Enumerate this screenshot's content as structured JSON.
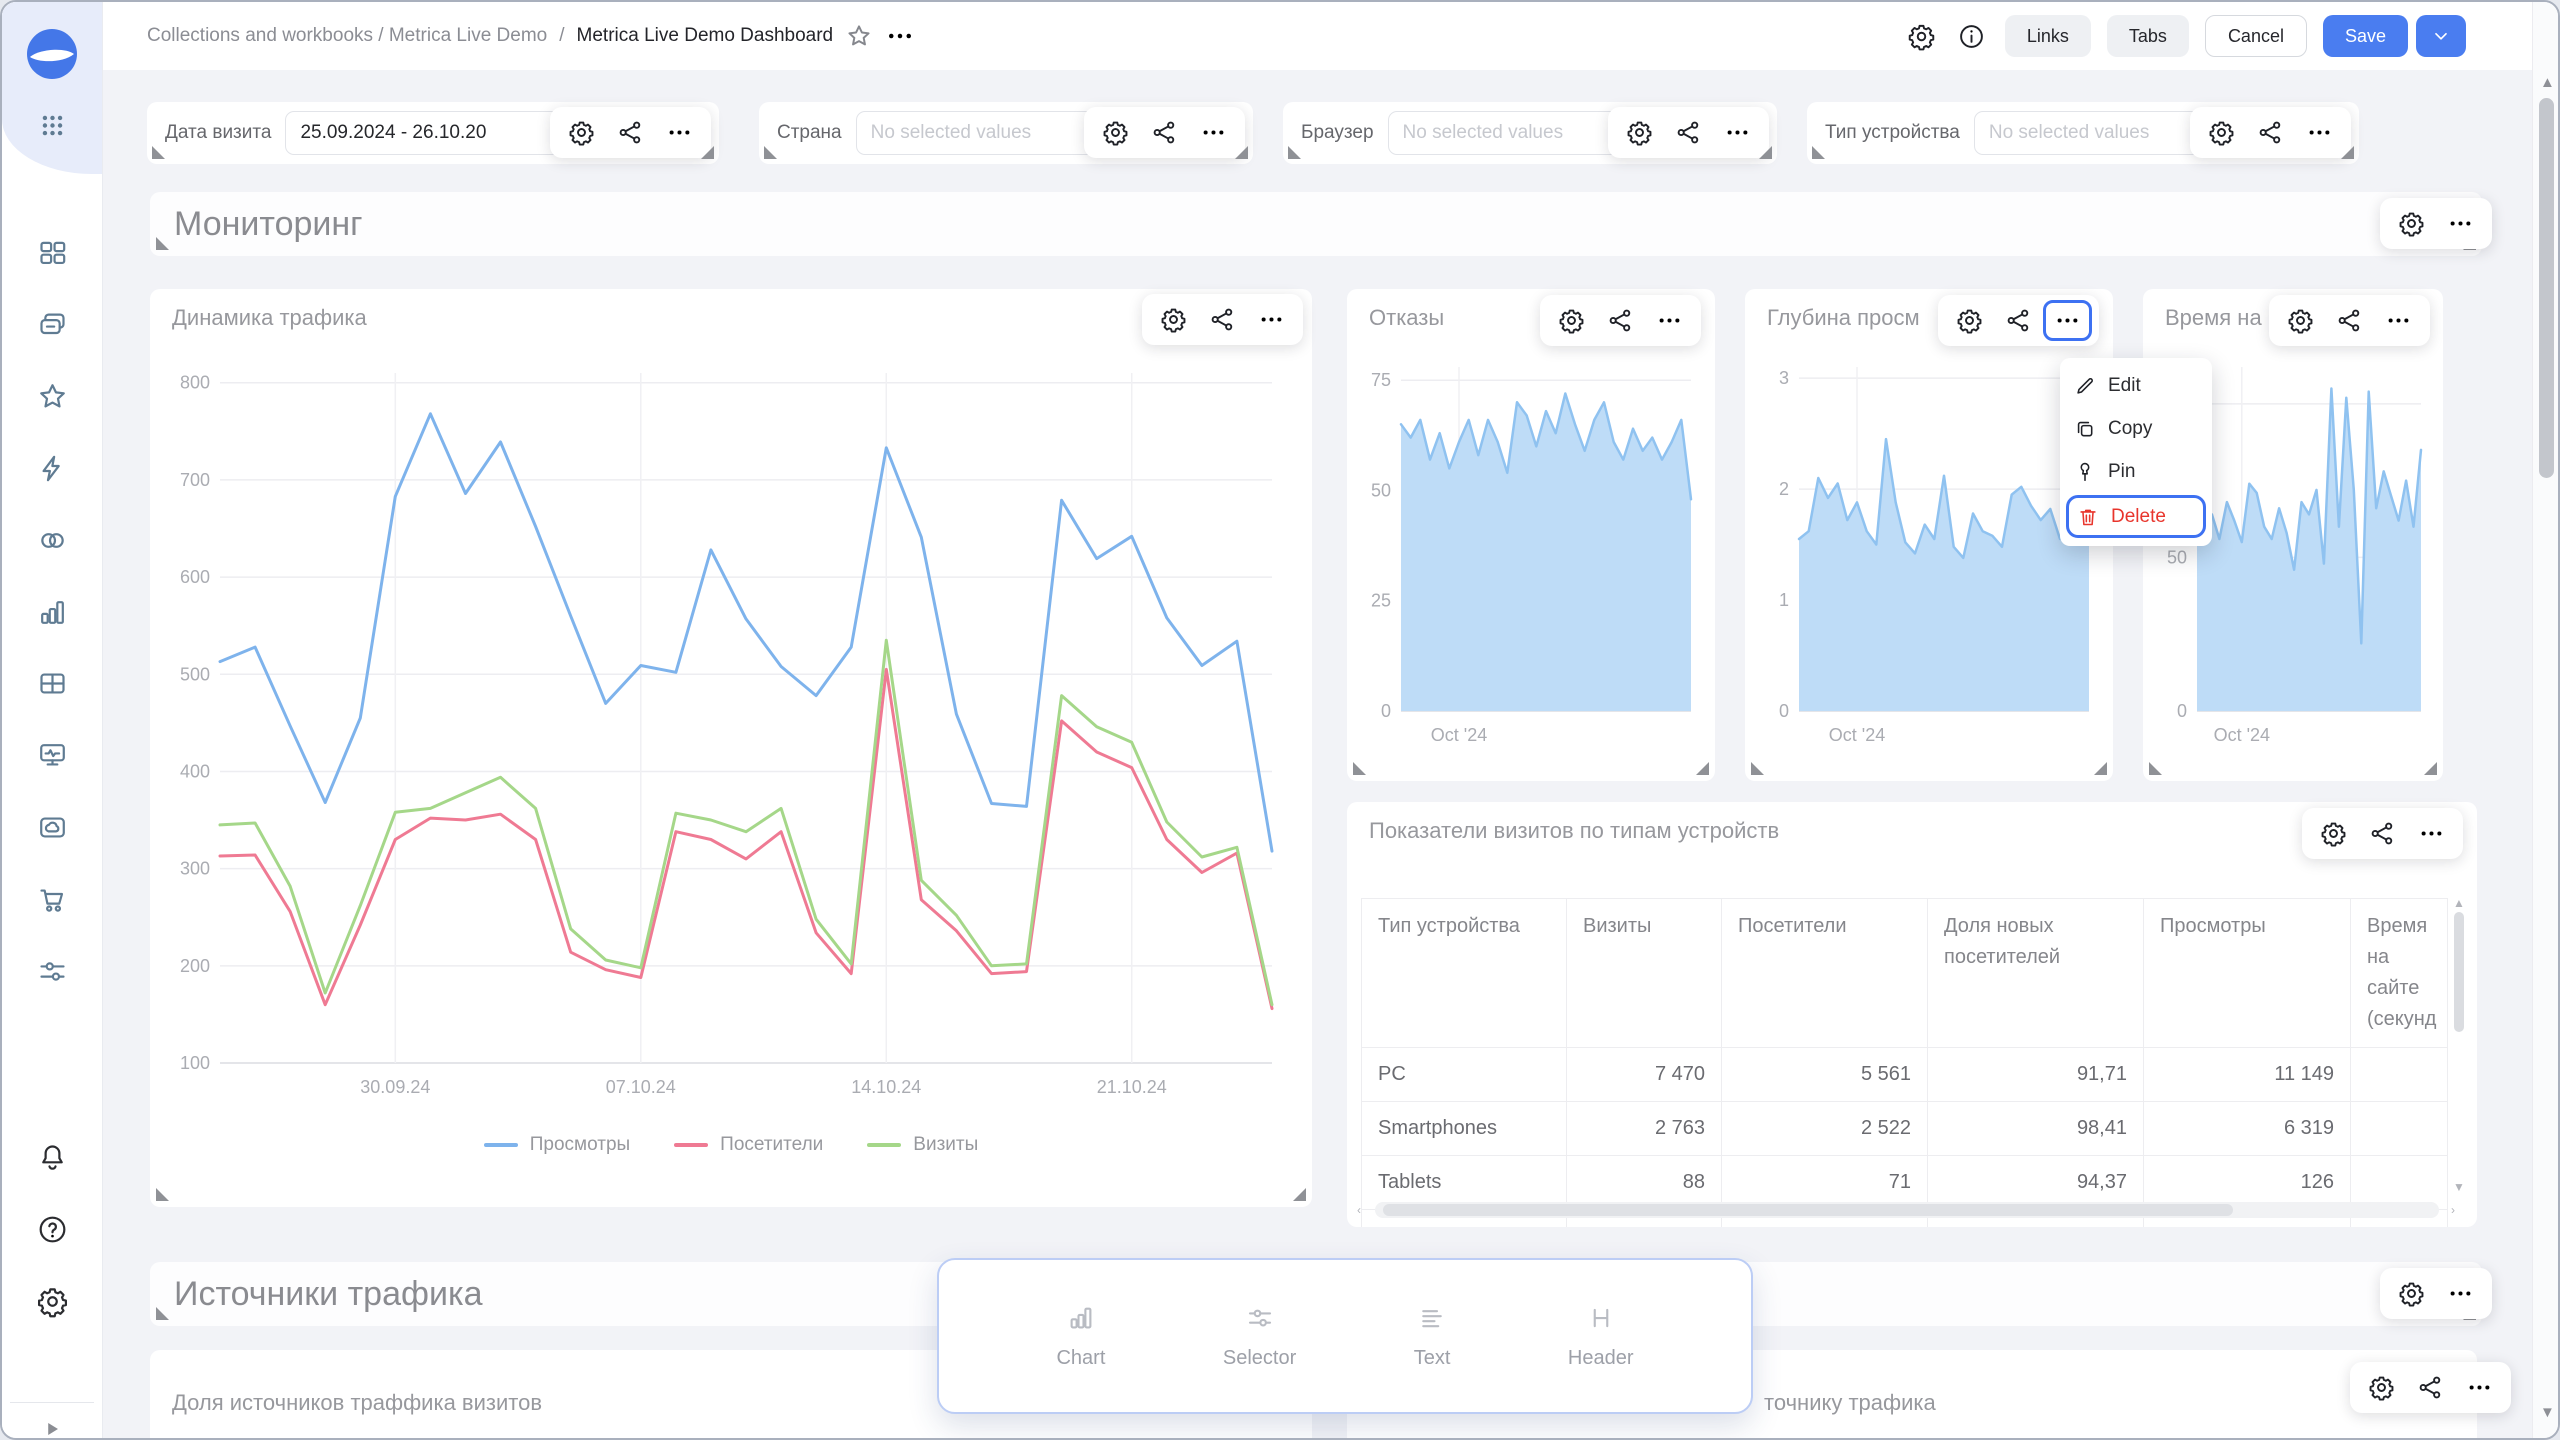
{
  "colors": {
    "accent": "#4a7df0",
    "danger": "#e8352c",
    "line_views": "#7eb3ec",
    "line_visitors": "#ef7a93",
    "line_visits": "#a5d789",
    "area_fill": "#bedcf7",
    "area_stroke": "#8fc2f0"
  },
  "topbar": {
    "breadcrumb_gray": "Collections and workbooks / Metrica Live Demo",
    "separator": "/",
    "breadcrumb_active": "Metrica Live Demo Dashboard",
    "links_label": "Links",
    "tabs_label": "Tabs",
    "cancel_label": "Cancel",
    "save_label": "Save"
  },
  "sidebar": {
    "icons": [
      "datalens-logo",
      "apps-grid",
      "dashboards",
      "collections",
      "favorites",
      "quick-actions",
      "datasets",
      "charts",
      "tables",
      "monitoring",
      "storage",
      "marketplace",
      "services",
      "notifications",
      "help",
      "settings",
      "expand"
    ]
  },
  "filters": [
    {
      "label": "Дата визита",
      "value": "25.09.2024 - 26.10.20"
    },
    {
      "label": "Страна",
      "placeholder": "No selected values"
    },
    {
      "label": "Браузер",
      "placeholder": "No selected values"
    },
    {
      "label": "Тип устройства",
      "placeholder": "No selected values"
    }
  ],
  "sections": [
    {
      "title": "Мониторинг"
    },
    {
      "title": "Источники трафика"
    }
  ],
  "context_menu": {
    "items": [
      {
        "label": "Edit",
        "icon": "pencil-icon"
      },
      {
        "label": "Copy",
        "icon": "copy-icon"
      },
      {
        "label": "Pin",
        "icon": "pin-icon"
      },
      {
        "label": "Delete",
        "icon": "trash-icon",
        "danger": true
      }
    ]
  },
  "palette": {
    "items": [
      {
        "label": "Chart",
        "icon": "chart-icon"
      },
      {
        "label": "Selector",
        "icon": "selector-icon"
      },
      {
        "label": "Text",
        "icon": "text-icon"
      },
      {
        "label": "Header",
        "icon": "header-icon"
      }
    ]
  },
  "table": {
    "title": "Показатели визитов по типам устройств",
    "columns": [
      "Тип устройства",
      "Визиты",
      "Посетители",
      "Доля новых посетителей",
      "Просмотры",
      "Время на сайте (секунд"
    ],
    "rows": [
      {
        "cells": [
          "PC",
          "7 470",
          "5 561",
          "91,71",
          "11 149",
          ""
        ]
      },
      {
        "cells": [
          "Smartphones",
          "2 763",
          "2 522",
          "98,41",
          "6 319",
          ""
        ]
      },
      {
        "cells": [
          "Tablets",
          "88",
          "71",
          "94,37",
          "126",
          ""
        ]
      }
    ]
  },
  "bottom_widgets": {
    "left_title": "Доля источников траффика визитов",
    "right_title": "точнику трафика"
  },
  "chart_data": [
    {
      "type": "line",
      "title": "Динамика трафика",
      "ylim": [
        100,
        810
      ],
      "yticks": [
        100,
        200,
        300,
        400,
        500,
        600,
        700,
        800
      ],
      "xticks": [
        {
          "label": "30.09.24",
          "index": 5
        },
        {
          "label": "07.10.24",
          "index": 12
        },
        {
          "label": "14.10.24",
          "index": 19
        },
        {
          "label": "21.10.24",
          "index": 26
        }
      ],
      "legend_position": "bottom",
      "series": [
        {
          "name": "Просмотры",
          "color": "#7eb3ec",
          "values": [
            513,
            528,
            447,
            368,
            455,
            683,
            768,
            686,
            739,
            652,
            560,
            470,
            509,
            502,
            628,
            557,
            508,
            478,
            528,
            733,
            641,
            459,
            367,
            364,
            679,
            619,
            642,
            558,
            509,
            534,
            318
          ]
        },
        {
          "name": "Посетители",
          "color": "#ef7a93",
          "values": [
            313,
            314,
            256,
            160,
            242,
            330,
            352,
            350,
            356,
            330,
            214,
            196,
            188,
            338,
            330,
            310,
            338,
            234,
            192,
            505,
            268,
            236,
            192,
            194,
            452,
            420,
            404,
            330,
            296,
            316,
            156
          ]
        },
        {
          "name": "Визиты",
          "color": "#a5d789",
          "values": [
            345,
            347,
            282,
            172,
            262,
            358,
            362,
            378,
            394,
            362,
            238,
            206,
            198,
            357,
            350,
            338,
            362,
            248,
            202,
            535,
            288,
            252,
            200,
            202,
            478,
            446,
            430,
            348,
            312,
            322,
            160
          ]
        }
      ]
    },
    {
      "type": "area",
      "title": "Отказы",
      "ylim": [
        0,
        78
      ],
      "yticks": [
        0,
        25,
        50,
        75
      ],
      "xticks": [
        {
          "label": "Oct '24",
          "index": 6
        }
      ],
      "color": "#8fc2f0",
      "fill": "#bedcf7",
      "values": [
        65,
        62,
        66,
        57,
        63,
        55,
        61,
        66,
        58,
        66,
        61,
        54,
        70,
        67,
        60,
        68,
        63,
        72,
        65,
        59,
        66,
        70,
        61,
        57,
        64,
        59,
        62,
        57,
        61,
        66,
        48
      ]
    },
    {
      "type": "area",
      "title": "Глубина просм",
      "ylim": [
        0,
        3.1
      ],
      "yticks": [
        0,
        1,
        2,
        3
      ],
      "xticks": [
        {
          "label": "Oct '24",
          "index": 6
        }
      ],
      "color": "#8fc2f0",
      "fill": "#bedcf7",
      "values": [
        1.55,
        1.62,
        2.1,
        1.92,
        2.05,
        1.72,
        1.88,
        1.62,
        1.5,
        2.45,
        1.88,
        1.52,
        1.42,
        1.68,
        1.55,
        2.12,
        1.48,
        1.38,
        1.78,
        1.62,
        1.58,
        1.48,
        1.95,
        2.02,
        1.85,
        1.72,
        1.82,
        1.55,
        1.62,
        1.72,
        1.65
      ]
    },
    {
      "type": "area",
      "title": "Время на",
      "ylim": [
        0,
        112
      ],
      "yticks": [
        0,
        50
      ],
      "ygrid": [
        0,
        50,
        100
      ],
      "xticks": [
        {
          "label": "Oct '24",
          "index": 6
        }
      ],
      "color": "#8fc2f0",
      "fill": "#bedcf7",
      "values": [
        70,
        58,
        64,
        56,
        68,
        62,
        55,
        74,
        71,
        60,
        56,
        66,
        58,
        46,
        68,
        64,
        72,
        48,
        105,
        60,
        102,
        72,
        22,
        104,
        66,
        78,
        70,
        62,
        75,
        60,
        85
      ]
    }
  ]
}
